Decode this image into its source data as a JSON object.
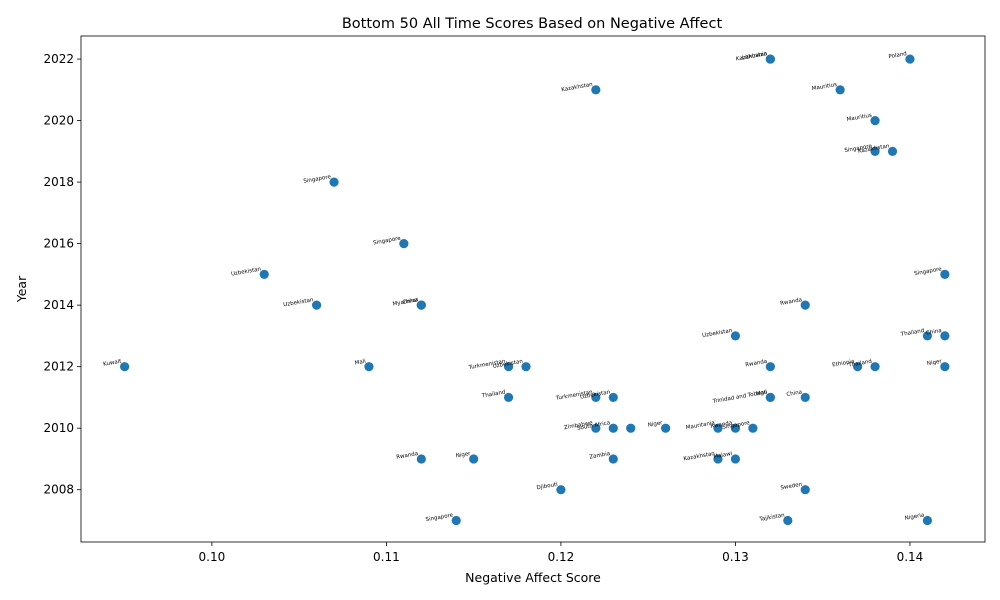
{
  "chart_data": {
    "type": "scatter",
    "title": "Bottom 50 All Time Scores Based on Negative Affect",
    "xlabel": "Negative Affect Score",
    "ylabel": "Year",
    "xlim": [
      0.0925,
      0.1443
    ],
    "ylim": [
      2006.3,
      2022.75
    ],
    "xticks": [
      "0.10",
      "0.11",
      "0.12",
      "0.13",
      "0.14"
    ],
    "xtick_values": [
      0.1,
      0.11,
      0.12,
      0.13,
      0.14
    ],
    "yticks": [
      "2008",
      "2010",
      "2012",
      "2014",
      "2016",
      "2018",
      "2020",
      "2022"
    ],
    "ytick_values": [
      2008,
      2010,
      2012,
      2014,
      2016,
      2018,
      2020,
      2022
    ],
    "grid": false,
    "legend": "none",
    "marker_color": "#1f77b4",
    "points": [
      {
        "x": 0.095,
        "y": 2012,
        "label": "Kuwait"
      },
      {
        "x": 0.103,
        "y": 2015,
        "label": "Uzbekistan"
      },
      {
        "x": 0.106,
        "y": 2014,
        "label": "Uzbekistan"
      },
      {
        "x": 0.107,
        "y": 2018,
        "label": "Singapore"
      },
      {
        "x": 0.109,
        "y": 2012,
        "label": "Mali"
      },
      {
        "x": 0.111,
        "y": 2016,
        "label": "Singapore"
      },
      {
        "x": 0.112,
        "y": 2014,
        "label": "Myanmar"
      },
      {
        "x": 0.112,
        "y": 2014,
        "label": "China"
      },
      {
        "x": 0.112,
        "y": 2009,
        "label": "Rwanda"
      },
      {
        "x": 0.114,
        "y": 2007,
        "label": "Singapore"
      },
      {
        "x": 0.115,
        "y": 2009,
        "label": "Niger"
      },
      {
        "x": 0.117,
        "y": 2012,
        "label": "Turkmenistan"
      },
      {
        "x": 0.117,
        "y": 2011,
        "label": "Thailand"
      },
      {
        "x": 0.118,
        "y": 2012,
        "label": "Uzbekistan"
      },
      {
        "x": 0.12,
        "y": 2008,
        "label": "Djibouti"
      },
      {
        "x": 0.122,
        "y": 2021,
        "label": "Kazakhstan"
      },
      {
        "x": 0.122,
        "y": 2011,
        "label": "Turkmenistan"
      },
      {
        "x": 0.122,
        "y": 2010,
        "label": "Zimbabwe"
      },
      {
        "x": 0.123,
        "y": 2011,
        "label": "Uzbekistan"
      },
      {
        "x": 0.123,
        "y": 2010,
        "label": "South Africa"
      },
      {
        "x": 0.124,
        "y": 2010,
        "label": ""
      },
      {
        "x": 0.123,
        "y": 2009,
        "label": "Zambia"
      },
      {
        "x": 0.126,
        "y": 2010,
        "label": "Niger"
      },
      {
        "x": 0.129,
        "y": 2010,
        "label": "Mauritania"
      },
      {
        "x": 0.129,
        "y": 2009,
        "label": "Kazakhstan"
      },
      {
        "x": 0.13,
        "y": 2013,
        "label": "Uzbekistan"
      },
      {
        "x": 0.13,
        "y": 2010,
        "label": "Rwanda"
      },
      {
        "x": 0.131,
        "y": 2010,
        "label": "Singapore"
      },
      {
        "x": 0.13,
        "y": 2009,
        "label": "Malawi"
      },
      {
        "x": 0.132,
        "y": 2022,
        "label": "Kazakhstan"
      },
      {
        "x": 0.132,
        "y": 2022,
        "label": "Lithuania"
      },
      {
        "x": 0.132,
        "y": 2012,
        "label": "Rwanda"
      },
      {
        "x": 0.132,
        "y": 2011,
        "label": "Trinidad and Tobago"
      },
      {
        "x": 0.132,
        "y": 2011,
        "label": "Mali"
      },
      {
        "x": 0.133,
        "y": 2007,
        "label": "Tajikistan"
      },
      {
        "x": 0.134,
        "y": 2014,
        "label": "Rwanda"
      },
      {
        "x": 0.134,
        "y": 2011,
        "label": "China"
      },
      {
        "x": 0.134,
        "y": 2008,
        "label": "Sweden"
      },
      {
        "x": 0.136,
        "y": 2021,
        "label": "Mauritius"
      },
      {
        "x": 0.137,
        "y": 2012,
        "label": "Ethiopia"
      },
      {
        "x": 0.138,
        "y": 2020,
        "label": "Mauritius"
      },
      {
        "x": 0.138,
        "y": 2019,
        "label": "Singapore"
      },
      {
        "x": 0.138,
        "y": 2012,
        "label": "Thailand"
      },
      {
        "x": 0.139,
        "y": 2019,
        "label": "Kazakhstan"
      },
      {
        "x": 0.14,
        "y": 2022,
        "label": "Poland"
      },
      {
        "x": 0.141,
        "y": 2013,
        "label": "Thailand"
      },
      {
        "x": 0.141,
        "y": 2007,
        "label": "Nigeria"
      },
      {
        "x": 0.142,
        "y": 2015,
        "label": "Singapore"
      },
      {
        "x": 0.142,
        "y": 2013,
        "label": "China"
      },
      {
        "x": 0.142,
        "y": 2012,
        "label": "Niger"
      }
    ]
  }
}
